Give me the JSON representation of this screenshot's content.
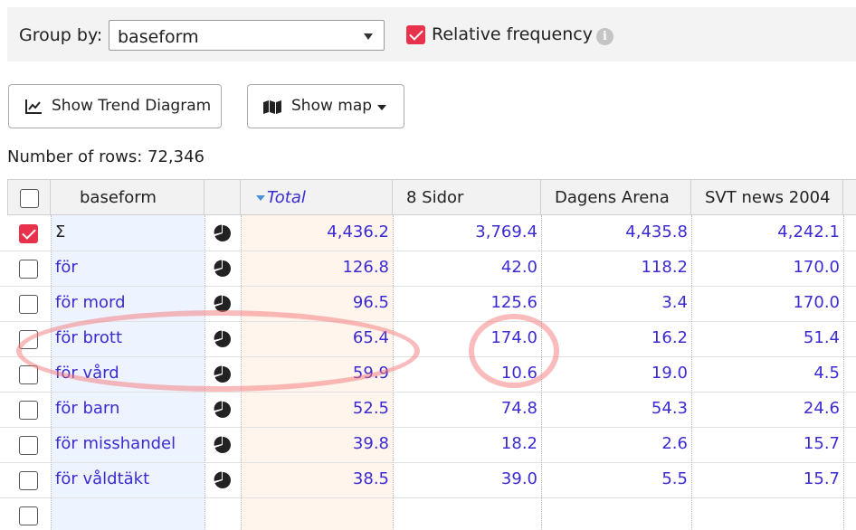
{
  "toolbar": {
    "group_by_label": "Group by:",
    "group_by_value": "baseform",
    "relative_frequency_label": "Relative frequency",
    "info_glyph": "i"
  },
  "buttons": {
    "trend": "Show Trend Diagram",
    "map": "Show map"
  },
  "rows_count": {
    "label": "Number of rows:",
    "value": "72,346"
  },
  "table": {
    "headers": [
      "baseform",
      "Total",
      "8 Sidor",
      "Dagens Arena",
      "SVT news 2004",
      "S"
    ],
    "sum_symbol": "Σ",
    "rows": [
      {
        "word": "Σ",
        "checked": true,
        "total": "4,436.2",
        "sidor8": "3,769.4",
        "dagens": "4,435.8",
        "svt": "4,242.1"
      },
      {
        "word": "för",
        "checked": false,
        "total": "126.8",
        "sidor8": "42.0",
        "dagens": "118.2",
        "svt": "170.0"
      },
      {
        "word": "för mord",
        "checked": false,
        "total": "96.5",
        "sidor8": "125.6",
        "dagens": "3.4",
        "svt": "170.0"
      },
      {
        "word": "för brott",
        "checked": false,
        "total": "65.4",
        "sidor8": "174.0",
        "dagens": "16.2",
        "svt": "51.4"
      },
      {
        "word": "för vård",
        "checked": false,
        "total": "59.9",
        "sidor8": "10.6",
        "dagens": "19.0",
        "svt": "4.5"
      },
      {
        "word": "för barn",
        "checked": false,
        "total": "52.5",
        "sidor8": "74.8",
        "dagens": "54.3",
        "svt": "24.6"
      },
      {
        "word": "för misshandel",
        "checked": false,
        "total": "39.8",
        "sidor8": "18.2",
        "dagens": "2.6",
        "svt": "15.7"
      },
      {
        "word": "för våldtäkt",
        "checked": false,
        "total": "38.5",
        "sidor8": "39.0",
        "dagens": "5.5",
        "svt": "15.7"
      }
    ]
  },
  "colors": {
    "accent_red": "#e8314a",
    "link_blue": "#3b2bd3",
    "annotation_circle": "#f47878"
  }
}
